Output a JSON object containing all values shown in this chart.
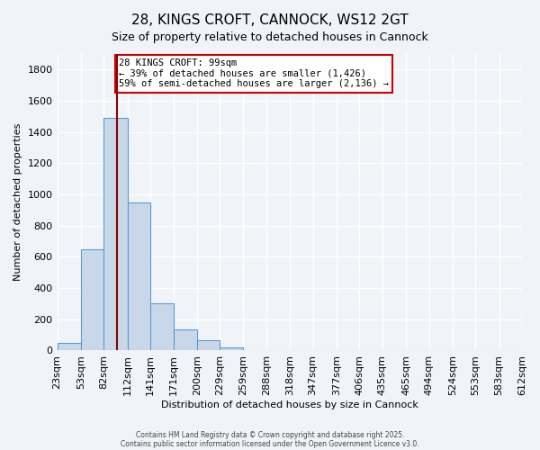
{
  "title": "28, KINGS CROFT, CANNOCK, WS12 2GT",
  "subtitle": "Size of property relative to detached houses in Cannock",
  "xlabel": "Distribution of detached houses by size in Cannock",
  "ylabel": "Number of detached properties",
  "bar_heights": [
    50,
    650,
    1490,
    950,
    300,
    135,
    65,
    20,
    0,
    0,
    5,
    0,
    0,
    0,
    0,
    0,
    0,
    0,
    0,
    0
  ],
  "bin_edges": [
    23,
    53,
    82,
    112,
    141,
    171,
    200,
    229,
    259,
    288,
    318,
    347,
    377,
    406,
    435,
    465,
    494,
    524,
    553,
    583,
    612
  ],
  "tick_labels": [
    "23sqm",
    "53sqm",
    "82sqm",
    "112sqm",
    "141sqm",
    "171sqm",
    "200sqm",
    "229sqm",
    "259sqm",
    "288sqm",
    "318sqm",
    "347sqm",
    "377sqm",
    "406sqm",
    "435sqm",
    "465sqm",
    "494sqm",
    "524sqm",
    "553sqm",
    "583sqm",
    "612sqm"
  ],
  "bar_facecolor": "#c8d8e8",
  "bar_edgecolor": "#5b9bd5",
  "vline_x": 99,
  "vline_color": "#8b0000",
  "annotation_text": "28 KINGS CROFT: 99sqm\n← 39% of detached houses are smaller (1,426)\n59% of semi-detached houses are larger (2,136) →",
  "annotation_box_color": "#ffffff",
  "annotation_box_edgecolor": "#cc0000",
  "ylim": [
    0,
    1900
  ],
  "yticks": [
    0,
    200,
    400,
    600,
    800,
    1000,
    1200,
    1400,
    1600,
    1800
  ],
  "background_color": "#f0f4f8",
  "grid_color": "#ffffff",
  "footer_line1": "Contains HM Land Registry data © Crown copyright and database right 2025.",
  "footer_line2": "Contains public sector information licensed under the Open Government Licence v3.0."
}
